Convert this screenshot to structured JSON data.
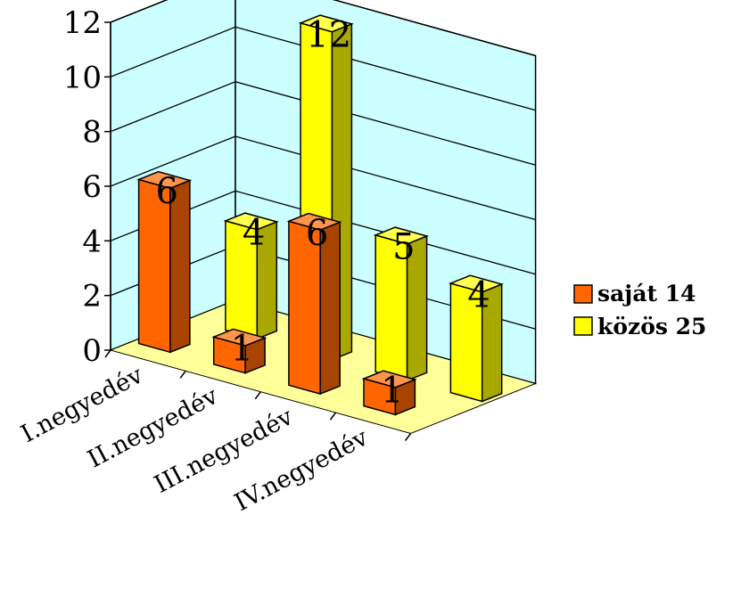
{
  "chart_data": {
    "type": "bar",
    "title": "",
    "xlabel": "",
    "ylabel": "",
    "ylim": [
      0,
      12
    ],
    "yticks": [
      "0",
      "2",
      "4",
      "6",
      "8",
      "10",
      "12"
    ],
    "categories": [
      "I.negyedév",
      "II.negyedév",
      "III.negyedév",
      "IV.negyedév"
    ],
    "series": [
      {
        "name": "saját 14",
        "values": [
          6,
          1,
          6,
          1
        ],
        "color": "#ff6600"
      },
      {
        "name": "közös 25",
        "values": [
          4,
          12,
          5,
          4
        ],
        "color": "#ffff00"
      }
    ],
    "grid": true,
    "legend": "right",
    "wall_color": "#ccffff",
    "floor_color": "#ffff99"
  }
}
